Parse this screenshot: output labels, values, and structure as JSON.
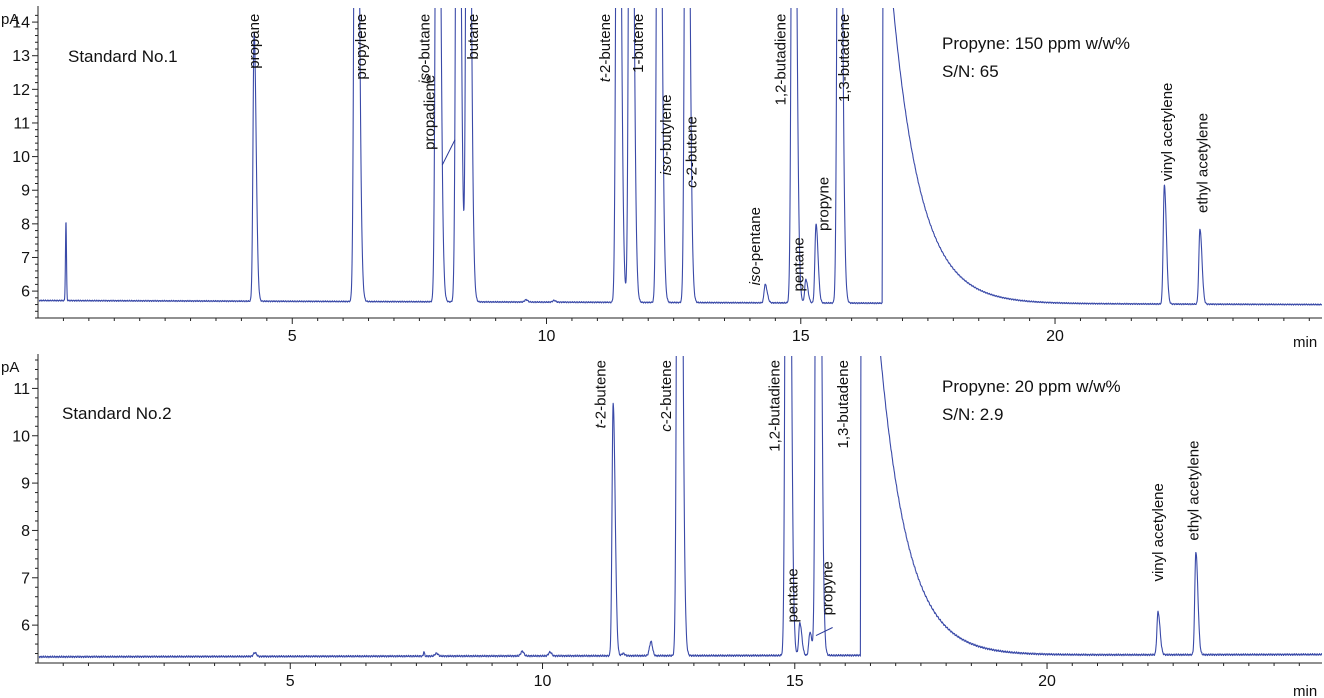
{
  "colors": {
    "trace": "#3a4aa8",
    "axis": "#222222",
    "text": "#111111"
  },
  "chart_data": [
    {
      "type": "line",
      "title": "Standard No.1",
      "info": [
        "Propyne: 150 ppm w/w%",
        "S/N: 65"
      ],
      "xlabel": "min",
      "ylabel": "pA",
      "xlim": [
        0,
        25.25
      ],
      "ylim": [
        5.2,
        14.3
      ],
      "x_ticks": [
        5,
        10,
        15,
        20
      ],
      "x_tick_labels": [
        "5",
        "10",
        "15",
        "20"
      ],
      "y_ticks": [
        6,
        7,
        8,
        9,
        10,
        11,
        12,
        13,
        14
      ],
      "y_tick_labels": [
        "6",
        "7",
        "8",
        "9",
        "10",
        "11",
        "12",
        "13",
        "14"
      ],
      "baseline": {
        "start": 5.72,
        "end": 5.6
      },
      "noise": [
        {
          "x": 0.55,
          "height": 2.35,
          "width": 0.01
        },
        {
          "x": 9.6,
          "height": 0.07,
          "width": 0.03
        },
        {
          "x": 10.15,
          "height": 0.05,
          "width": 0.03
        }
      ],
      "series": [
        {
          "peaks": [
            {
              "name": "propane",
              "rt": 4.25,
              "height": 13.7
            },
            {
              "name": "propylene",
              "rt": 6.25,
              "height": 30
            },
            {
              "name": "iso-butane",
              "rt": 7.85,
              "height": 30
            },
            {
              "name": "propadiene",
              "rt": 8.25,
              "height": 30
            },
            {
              "name": "butane",
              "rt": 8.45,
              "height": 30
            },
            {
              "name": "t-2-butene",
              "rt": 11.4,
              "height": 30
            },
            {
              "name": "1-butene",
              "rt": 11.65,
              "height": 30
            },
            {
              "name": "iso-butylene",
              "rt": 12.2,
              "height": 30
            },
            {
              "name": "c-2-butene",
              "rt": 12.75,
              "height": 30
            },
            {
              "name": "iso-pentane",
              "rt": 14.3,
              "height": 6.2
            },
            {
              "name": "1,2-butadiene",
              "rt": 14.85,
              "height": 30
            },
            {
              "name": "pentane",
              "rt": 15.1,
              "height": 6.35
            },
            {
              "name": "propyne",
              "rt": 15.3,
              "height": 8.0
            },
            {
              "name": "1,3-butadene",
              "rt": 15.75,
              "height": 30
            },
            {
              "name": "vinyl acetylene",
              "rt": 22.15,
              "height": 9.15
            },
            {
              "name": "ethyl acetylene",
              "rt": 22.85,
              "height": 7.85
            }
          ]
        }
      ],
      "labels": [
        {
          "text": "propane",
          "italic": "",
          "x": 4.35,
          "y": 14.25,
          "anchor": "end"
        },
        {
          "text": "propylene",
          "italic": "",
          "x": 6.45,
          "y": 14.25,
          "anchor": "end"
        },
        {
          "text": "-butane",
          "italic": "iso",
          "x": 7.7,
          "y": 14.25,
          "anchor": "end"
        },
        {
          "text": "propadiene",
          "italic": "",
          "x": 7.8,
          "y": 10.2,
          "anchor": "start"
        },
        {
          "text": "butane",
          "italic": "",
          "x": 8.65,
          "y": 14.25,
          "anchor": "end"
        },
        {
          "text": "-2-butene",
          "italic": "t",
          "x": 11.25,
          "y": 14.25,
          "anchor": "end"
        },
        {
          "text": "1-butene",
          "italic": "",
          "x": 11.9,
          "y": 14.25,
          "anchor": "end"
        },
        {
          "text": "-butylene",
          "italic": "iso",
          "x": 12.45,
          "y": 11.85,
          "anchor": "end"
        },
        {
          "text": "-2-butene",
          "italic": "c",
          "x": 12.95,
          "y": 11.2,
          "anchor": "end"
        },
        {
          "text": "-pentane",
          "italic": "iso",
          "x": 14.2,
          "y": 8.5,
          "anchor": "end"
        },
        {
          "text": "1,2-butadiene",
          "italic": "",
          "x": 14.7,
          "y": 14.25,
          "anchor": "end"
        },
        {
          "text": "pentane",
          "italic": "",
          "x": 15.05,
          "y": 7.6,
          "anchor": "end"
        },
        {
          "text": "propyne",
          "italic": "",
          "x": 15.55,
          "y": 9.4,
          "anchor": "end"
        },
        {
          "text": "1,3-butadene",
          "italic": "",
          "x": 15.95,
          "y": 14.25,
          "anchor": "end"
        },
        {
          "text": "vinyl acetylene",
          "italic": "",
          "x": 22.3,
          "y": 12.2,
          "anchor": "end"
        },
        {
          "text": "ethyl acetylene",
          "italic": "",
          "x": 23.0,
          "y": 11.3,
          "anchor": "end"
        }
      ],
      "leaders": [
        {
          "x1": 8.2,
          "y1": 10.5,
          "x2": 7.95,
          "y2": 9.75
        }
      ]
    },
    {
      "type": "line",
      "title": "Standard No.2",
      "info": [
        "Propyne: 20 ppm w/w%",
        "S/N: 2.9"
      ],
      "xlabel": "min",
      "ylabel": "pA",
      "xlim": [
        0,
        25.45
      ],
      "ylim": [
        5.2,
        11.6
      ],
      "x_ticks": [
        5,
        10,
        15,
        20
      ],
      "x_tick_labels": [
        "5",
        "10",
        "15",
        "20"
      ],
      "y_ticks": [
        6,
        7,
        8,
        9,
        10,
        11
      ],
      "y_tick_labels": [
        "6",
        "7",
        "8",
        "9",
        "10",
        "11"
      ],
      "baseline": {
        "start": 5.33,
        "end": 5.38
      },
      "noise": [
        {
          "x": 4.3,
          "height": 0.08,
          "width": 0.03
        },
        {
          "x": 7.65,
          "height": 0.1,
          "width": 0.01
        },
        {
          "x": 7.9,
          "height": 0.06,
          "width": 0.03
        },
        {
          "x": 9.6,
          "height": 0.1,
          "width": 0.03
        },
        {
          "x": 10.15,
          "height": 0.08,
          "width": 0.03
        },
        {
          "x": 11.6,
          "height": 0.05,
          "width": 0.03
        },
        {
          "x": 12.15,
          "height": 0.3,
          "width": 0.03
        }
      ],
      "series": [
        {
          "peaks": [
            {
              "name": "t-2-butene",
              "rt": 11.4,
              "height": 10.7
            },
            {
              "name": "c-2-butene",
              "rt": 12.7,
              "height": 30
            },
            {
              "name": "1,2-butadiene",
              "rt": 14.85,
              "height": 30
            },
            {
              "name": "pentane",
              "rt": 15.1,
              "height": 6.05
            },
            {
              "name": "propyne",
              "rt": 15.3,
              "height": 5.85
            },
            {
              "name": "1,3-butadene",
              "rt": 15.45,
              "height": 30
            },
            {
              "name": "vinyl acetylene",
              "rt": 22.2,
              "height": 6.28
            },
            {
              "name": "ethyl acetylene",
              "rt": 22.95,
              "height": 7.55
            }
          ]
        }
      ],
      "labels": [
        {
          "text": "-2-butene",
          "italic": "t",
          "x": 11.25,
          "y": 11.6,
          "anchor": "end"
        },
        {
          "text": "-2-butene",
          "italic": "c",
          "x": 12.55,
          "y": 11.6,
          "anchor": "end"
        },
        {
          "text": "1,2-butadiene",
          "italic": "",
          "x": 14.7,
          "y": 11.6,
          "anchor": "end"
        },
        {
          "text": "pentane",
          "italic": "",
          "x": 15.05,
          "y": 7.2,
          "anchor": "end"
        },
        {
          "text": "propyne",
          "italic": "",
          "x": 15.75,
          "y": 7.35,
          "anchor": "end"
        },
        {
          "text": "1,3-butadene",
          "italic": "",
          "x": 16.05,
          "y": 11.6,
          "anchor": "end"
        },
        {
          "text": "vinyl acetylene",
          "italic": "",
          "x": 22.3,
          "y": 9.0,
          "anchor": "end"
        },
        {
          "text": "ethyl acetylene",
          "italic": "",
          "x": 23.0,
          "y": 9.9,
          "anchor": "end"
        }
      ],
      "leaders": [
        {
          "x1": 15.75,
          "y1": 5.95,
          "x2": 15.42,
          "y2": 5.78
        }
      ]
    }
  ]
}
